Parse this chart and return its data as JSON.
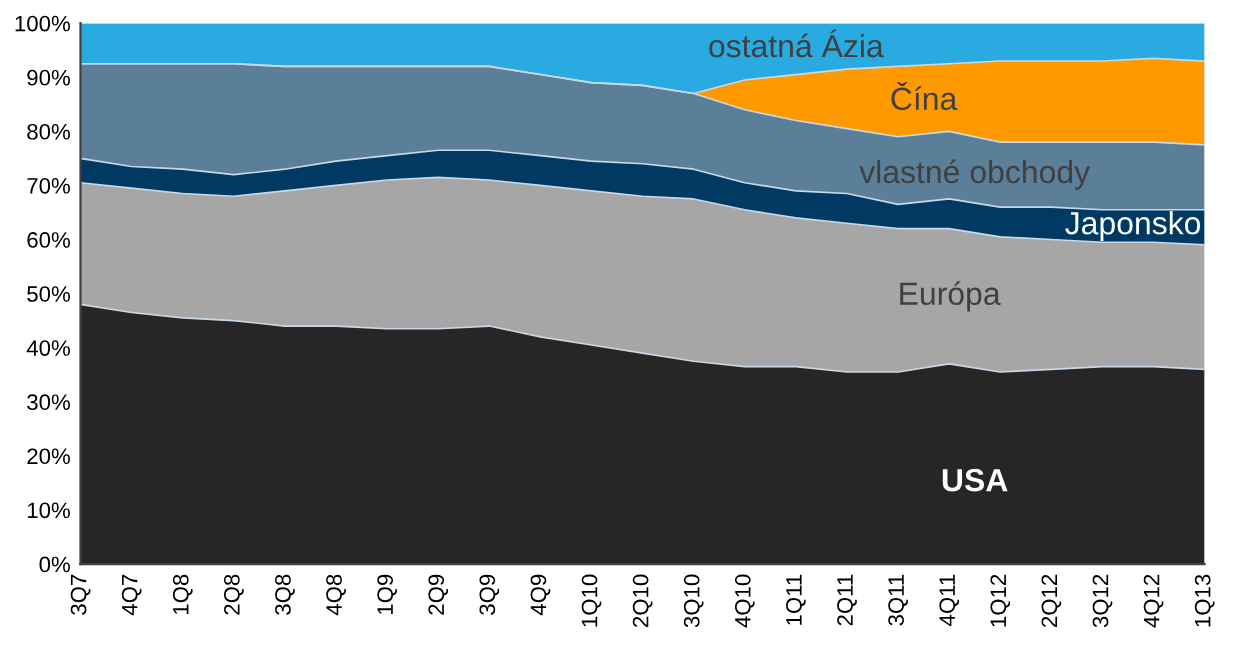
{
  "chart_data": {
    "type": "area",
    "stacked": true,
    "legend": false,
    "grid": false,
    "categories": [
      "3Q7",
      "4Q7",
      "1Q8",
      "2Q8",
      "3Q8",
      "4Q8",
      "1Q9",
      "2Q9",
      "3Q9",
      "4Q9",
      "1Q10",
      "2Q10",
      "3Q10",
      "4Q10",
      "1Q11",
      "2Q11",
      "3Q11",
      "4Q11",
      "1Q12",
      "2Q12",
      "3Q12",
      "4Q12",
      "1Q13"
    ],
    "series": [
      {
        "name": "USA",
        "color": "#262626",
        "values": [
          48,
          46.5,
          45.5,
          45,
          44,
          44,
          43.5,
          43.5,
          44,
          42,
          40.5,
          39,
          37.5,
          36.5,
          36.5,
          35.5,
          35.5,
          37,
          35.5,
          36,
          36.5,
          36.5,
          36
        ]
      },
      {
        "name": "Európa",
        "color": "#a6a6a6",
        "values": [
          22.5,
          23,
          23,
          23,
          25,
          26,
          27.5,
          28,
          27,
          28,
          28.5,
          29,
          30,
          29,
          27.5,
          27.5,
          26.5,
          25,
          25,
          24,
          23,
          23,
          23
        ]
      },
      {
        "name": "Japonsko",
        "color": "#003a63",
        "values": [
          4.5,
          4,
          4.5,
          4,
          4,
          4.5,
          4.5,
          5,
          5.5,
          5.5,
          5.5,
          6,
          5.5,
          5,
          5,
          5.5,
          4.5,
          5.5,
          5.5,
          6,
          6,
          6,
          6.5
        ]
      },
      {
        "name": "vlastné obchody",
        "color": "#5b7f98",
        "values": [
          17.5,
          19,
          19.5,
          20.5,
          19,
          17.5,
          16.5,
          15.5,
          15.5,
          15,
          14.5,
          14.5,
          14,
          13.5,
          13,
          12,
          12.5,
          12.5,
          12,
          12,
          12.5,
          12.5,
          12
        ]
      },
      {
        "name": "Čína",
        "color": "#ff9900",
        "values": [
          0,
          0,
          0,
          0,
          0,
          0,
          0,
          0,
          0,
          0,
          0,
          0,
          0,
          5.5,
          8.5,
          11,
          13,
          12.5,
          15,
          15,
          15,
          15.5,
          15.5
        ]
      },
      {
        "name": "ostatná Ázia",
        "color": "#29abe2",
        "values": [
          7.5,
          7.5,
          7.5,
          7.5,
          8,
          8,
          8,
          8,
          8,
          9.5,
          11,
          11.5,
          13,
          10.5,
          9.5,
          8.5,
          8,
          7.5,
          7,
          7,
          7,
          6.5,
          7
        ]
      }
    ],
    "ylim": [
      0,
      100
    ],
    "yticks": [
      {
        "value": 0,
        "label": "0%"
      },
      {
        "value": 10,
        "label": "10%"
      },
      {
        "value": 20,
        "label": "20%"
      },
      {
        "value": 30,
        "label": "30%"
      },
      {
        "value": 40,
        "label": "40%"
      },
      {
        "value": 50,
        "label": "50%"
      },
      {
        "value": 60,
        "label": "60%"
      },
      {
        "value": 70,
        "label": "70%"
      },
      {
        "value": 80,
        "label": "80%"
      },
      {
        "value": 90,
        "label": "90%"
      },
      {
        "value": 100,
        "label": "100%"
      }
    ]
  }
}
